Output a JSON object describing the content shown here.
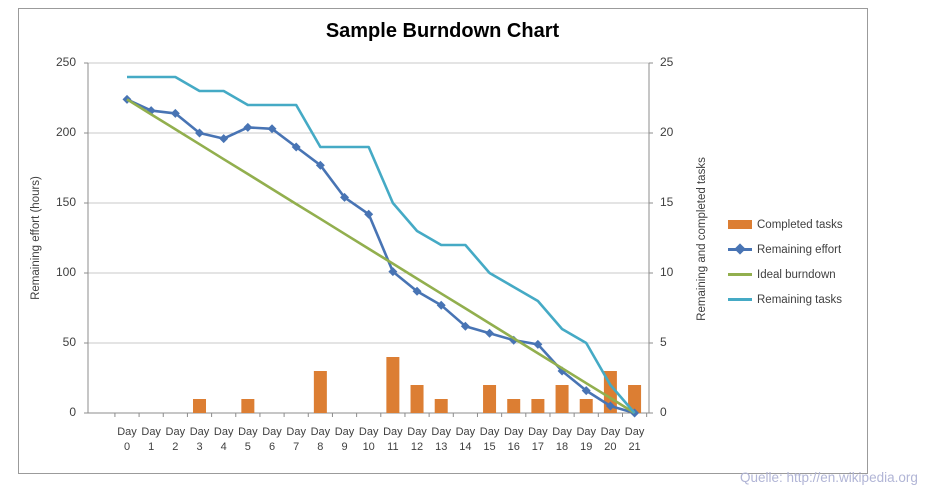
{
  "page": {
    "source_note": "Quelle: http://en.wikipedia.org"
  },
  "chart_data": {
    "type": "combo-bar-line",
    "title": "Sample Burndown Chart",
    "category_word": "Day",
    "categories": [
      "0",
      "1",
      "2",
      "3",
      "4",
      "5",
      "6",
      "7",
      "8",
      "9",
      "10",
      "11",
      "12",
      "13",
      "14",
      "15",
      "16",
      "17",
      "18",
      "19",
      "20",
      "21"
    ],
    "y_left": {
      "label": "Remaining effort (hours)",
      "min": 0,
      "max": 250,
      "step": 50,
      "ticks": [
        "250",
        "200",
        "150",
        "100",
        "50",
        "0"
      ]
    },
    "y_right": {
      "label": "Remaining and completed tasks",
      "min": 0,
      "max": 25,
      "step": 5,
      "ticks": [
        "25",
        "20",
        "15",
        "10",
        "5",
        "0"
      ]
    },
    "grid": "horizontal",
    "legend_position": "right",
    "series": [
      {
        "name": "Completed tasks",
        "type": "bar",
        "axis": "right",
        "color": "#DC7E33",
        "values": [
          0,
          0,
          0,
          1,
          0,
          1,
          0,
          0,
          3,
          0,
          0,
          4,
          2,
          1,
          0,
          2,
          1,
          1,
          2,
          1,
          3,
          2
        ]
      },
      {
        "name": "Remaining effort",
        "type": "line",
        "axis": "left",
        "color": "#4874B4",
        "marker": "diamond",
        "values": [
          224,
          216,
          214,
          200,
          196,
          204,
          203,
          190,
          177,
          154,
          142,
          101,
          87,
          77,
          62,
          57,
          52,
          49,
          30,
          16,
          5,
          0
        ]
      },
      {
        "name": "Ideal burndown",
        "type": "line",
        "axis": "left",
        "color": "#92AF4E",
        "values": [
          224,
          213.3,
          202.7,
          192,
          181.3,
          170.7,
          160,
          149.3,
          138.7,
          128,
          117.3,
          106.7,
          96,
          85.3,
          74.7,
          64,
          53.3,
          42.7,
          32,
          21.3,
          10.7,
          0
        ]
      },
      {
        "name": "Remaining tasks",
        "type": "line",
        "axis": "right",
        "color": "#45AAC5",
        "values": [
          24,
          24,
          24,
          23,
          23,
          22,
          22,
          22,
          19,
          19,
          19,
          15,
          13,
          12,
          12,
          10,
          9,
          8,
          6,
          5,
          2,
          0
        ]
      }
    ],
    "colors": {
      "gridline": "#C9C9C9",
      "axis_line": "#8C8C8C",
      "tick_text": "#3F3F3F",
      "frame_border": "#9B9B9B"
    }
  }
}
